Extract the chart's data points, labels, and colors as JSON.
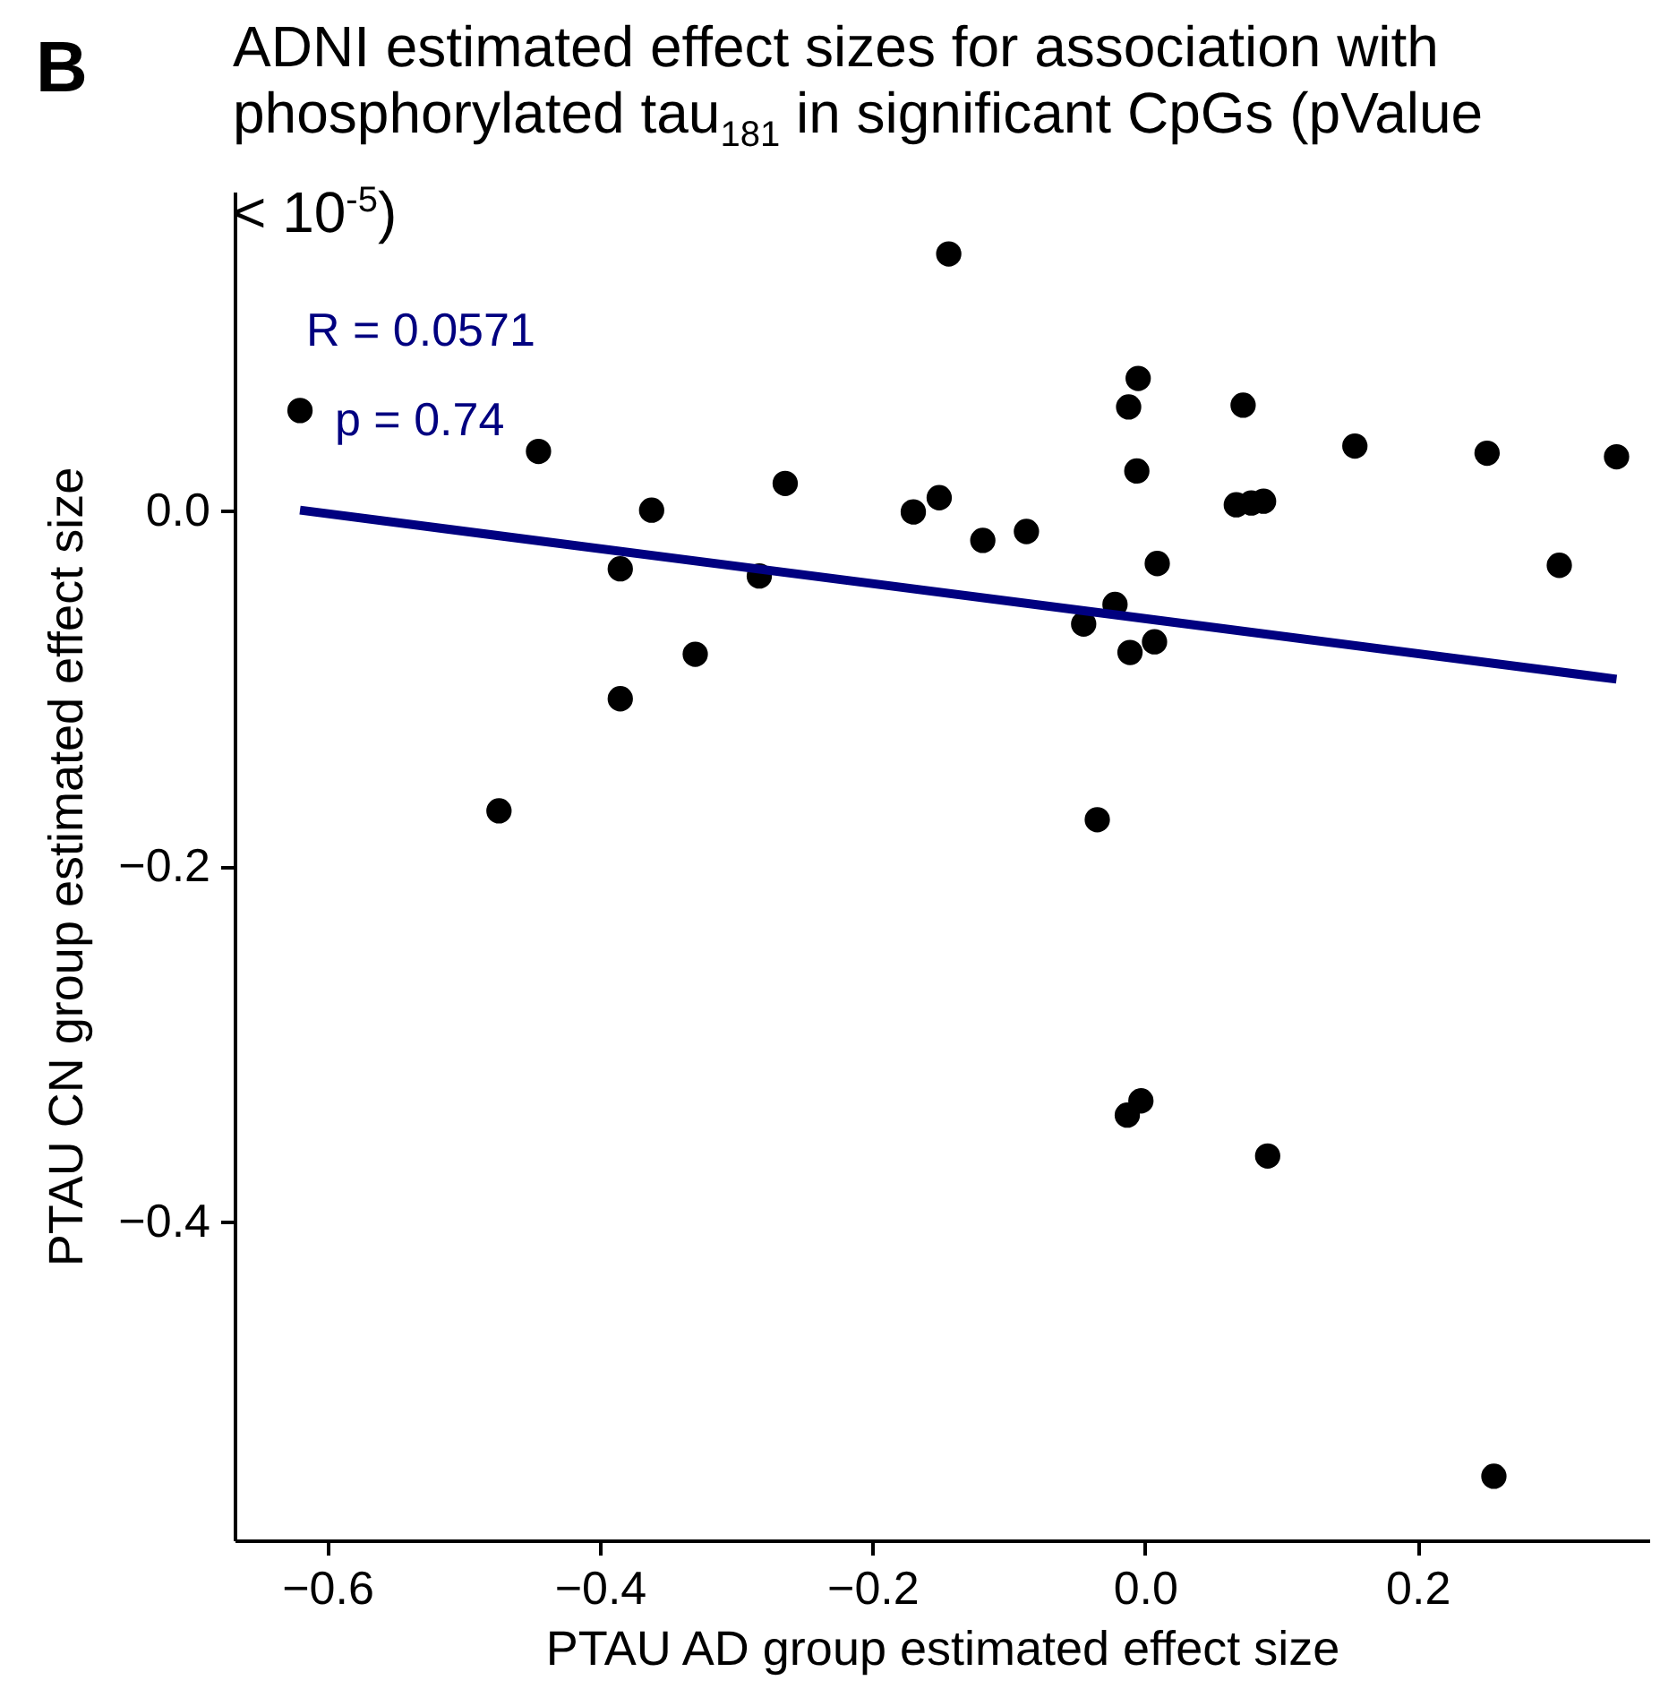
{
  "chart_data": {
    "type": "scatter",
    "title": "ADNI estimated effect sizes for association with phosphorylated tau$_{181}$ in significant CpGs (pValue < 10$^{-5}$)",
    "xlabel": "PTAU AD group estimated effect size",
    "ylabel": "PTAU CN group estimated effect size",
    "annotations": [
      "B",
      "R = 0.0571",
      "p = 0.74"
    ],
    "xlim": [
      -0.668,
      0.37
    ],
    "xticks": [
      {
        "value": -0.6,
        "label": "−0.6"
      },
      {
        "value": -0.4,
        "label": "−0.4"
      },
      {
        "value": -0.2,
        "label": "−0.2"
      },
      {
        "value": 0.0,
        "label": "0.0"
      },
      {
        "value": 0.2,
        "label": "0.2"
      }
    ],
    "ylim": [
      -0.579,
      0.179
    ],
    "yticks": [
      {
        "value": -0.4,
        "label": "−0.4"
      },
      {
        "value": -0.2,
        "label": "−0.2"
      },
      {
        "value": 0.0,
        "label": "0.0"
      }
    ],
    "series": [
      {
        "color": "#000000",
        "x": [
          -0.62,
          -0.445,
          -0.362,
          -0.264,
          -0.385,
          -0.283,
          -0.33,
          -0.385,
          -0.474,
          -0.17,
          -0.151,
          -0.144,
          -0.119,
          -0.087,
          -0.005,
          -0.012,
          -0.006,
          0.072,
          0.154,
          0.251,
          0.346,
          0.067,
          0.078,
          0.087,
          0.009,
          0.304,
          -0.022,
          -0.045,
          0.007,
          -0.011,
          -0.035,
          -0.003,
          -0.013,
          0.09,
          0.256
        ],
        "values": [
          0.056,
          0.033,
          0.0,
          0.015,
          -0.033,
          -0.037,
          -0.081,
          -0.106,
          -0.169,
          -0.001,
          0.007,
          0.144,
          -0.017,
          -0.012,
          0.074,
          0.058,
          0.022,
          0.059,
          0.036,
          0.032,
          0.03,
          0.003,
          0.004,
          0.005,
          -0.03,
          -0.031,
          -0.053,
          -0.064,
          -0.074,
          -0.08,
          -0.174,
          -0.332,
          -0.34,
          -0.363,
          -0.543
        ]
      },
      {
        "type": "line",
        "color": "#000080",
        "x": [
          -0.62,
          0.346
        ],
        "values": [
          0.0,
          -0.095
        ]
      }
    ]
  }
}
